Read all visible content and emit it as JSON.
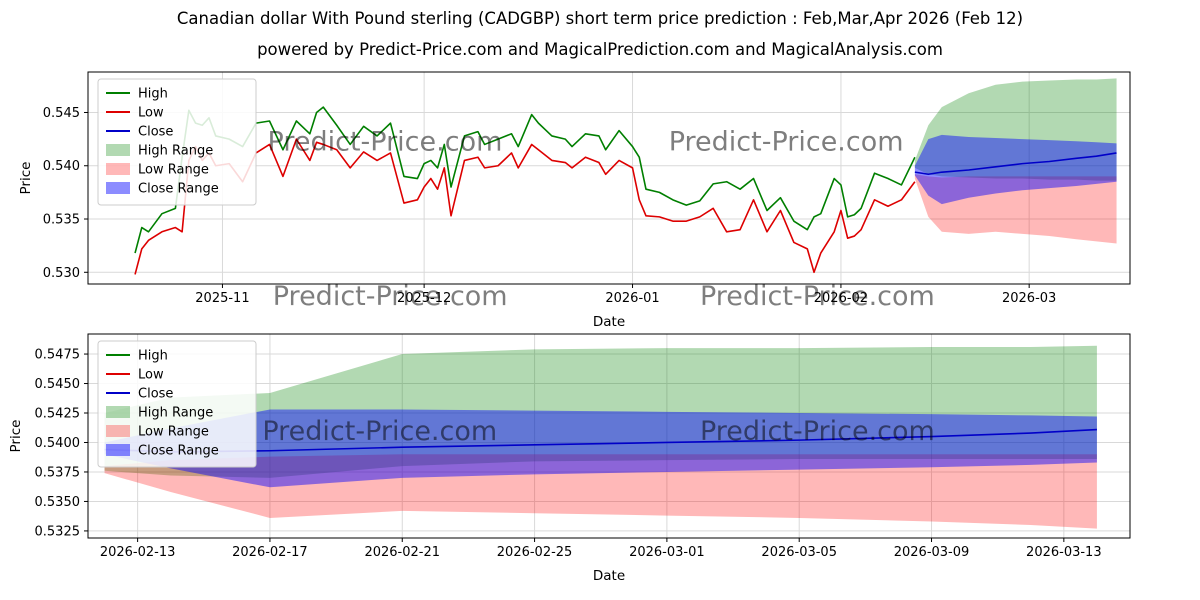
{
  "page": {
    "title": "Canadian dollar With Pound sterling (CADGBP) short term price prediction : Feb,Mar,Apr 2026 (Feb 12)",
    "subtitle": "powered by Predict-Price.com and MagicalPrediction.com and MagicalAnalysis.com"
  },
  "watermark": "Predict-Price.com",
  "colors": {
    "high_line": "#007f00",
    "low_line": "#dd0000",
    "close_line": "#0000c8",
    "high_band": "rgba(0,128,0,0.30)",
    "low_band": "rgba(255,0,0,0.28)",
    "close_band": "rgba(0,0,255,0.45)",
    "grid": "#d9d9d9",
    "watermark_gray": "#9a9a9a"
  },
  "chart_data": [
    {
      "type": "line",
      "title": "",
      "xlabel": "Date",
      "ylabel": "Price",
      "xlim": [
        0,
        155
      ],
      "ylim": [
        0.5289,
        0.5488
      ],
      "xticks": [
        {
          "v": 20,
          "label": "2025-11"
        },
        {
          "v": 50,
          "label": "2025-12"
        },
        {
          "v": 81,
          "label": "2026-01"
        },
        {
          "v": 112,
          "label": "2026-02"
        },
        {
          "v": 140,
          "label": "2026-03"
        }
      ],
      "yticks": [
        {
          "v": 0.53,
          "label": "0.530"
        },
        {
          "v": 0.535,
          "label": "0.535"
        },
        {
          "v": 0.54,
          "label": "0.540"
        },
        {
          "v": 0.545,
          "label": "0.545"
        }
      ],
      "legend": [
        {
          "label": "High",
          "type": "line",
          "color": "#007f00"
        },
        {
          "label": "Low",
          "type": "line",
          "color": "#dd0000"
        },
        {
          "label": "Close",
          "type": "line",
          "color": "#0000c8"
        },
        {
          "label": "High Range",
          "type": "patch",
          "color": "rgba(0,128,0,0.30)"
        },
        {
          "label": "Low Range",
          "type": "patch",
          "color": "rgba(255,0,0,0.28)"
        },
        {
          "label": "Close Range",
          "type": "patch",
          "color": "rgba(0,0,255,0.45)"
        }
      ],
      "bands": [
        {
          "name": "high-range",
          "color": "rgba(0,128,0,0.30)",
          "x": [
            123,
            125,
            127,
            131,
            135,
            139,
            143,
            147,
            150,
            153
          ],
          "upper": [
            0.5405,
            0.5438,
            0.5455,
            0.5468,
            0.5476,
            0.5479,
            0.548,
            0.5481,
            0.5481,
            0.5482
          ],
          "lower": [
            0.5398,
            0.5392,
            0.539,
            0.5389,
            0.5388,
            0.5388,
            0.5387,
            0.5387,
            0.5386,
            0.5386
          ]
        },
        {
          "name": "low-range",
          "color": "rgba(255,0,0,0.28)",
          "x": [
            123,
            125,
            127,
            131,
            135,
            139,
            143,
            147,
            150,
            153
          ],
          "upper": [
            0.5392,
            0.539,
            0.5389,
            0.539,
            0.539,
            0.539,
            0.539,
            0.539,
            0.539,
            0.539
          ],
          "lower": [
            0.5388,
            0.5352,
            0.5338,
            0.5336,
            0.5338,
            0.5336,
            0.5334,
            0.5331,
            0.5329,
            0.5327
          ]
        },
        {
          "name": "close-range",
          "color": "rgba(0,0,255,0.45)",
          "x": [
            123,
            125,
            127,
            131,
            135,
            139,
            143,
            147,
            150,
            153
          ],
          "upper": [
            0.54,
            0.5425,
            0.5429,
            0.5427,
            0.5426,
            0.5425,
            0.5424,
            0.5423,
            0.5422,
            0.5421
          ],
          "lower": [
            0.5391,
            0.5372,
            0.5364,
            0.537,
            0.5374,
            0.5377,
            0.5379,
            0.5381,
            0.5383,
            0.5385
          ]
        }
      ],
      "lines": [
        {
          "name": "high",
          "color": "#007f00",
          "x": [
            7,
            8,
            9,
            11,
            13,
            14,
            15,
            16,
            17,
            18,
            19,
            21,
            23,
            25,
            27,
            29,
            31,
            33,
            34,
            35,
            37,
            39,
            41,
            43,
            45,
            47,
            49,
            50,
            51,
            52,
            53,
            54,
            56,
            58,
            59,
            61,
            63,
            64,
            66,
            67,
            69,
            71,
            72,
            74,
            76,
            77,
            79,
            81,
            82,
            83,
            85,
            87,
            89,
            91,
            93,
            95,
            97,
            99,
            101,
            103,
            105,
            107,
            108,
            109,
            111,
            112,
            113,
            114,
            115,
            117,
            119,
            121,
            123
          ],
          "y": [
            0.5318,
            0.5342,
            0.5338,
            0.5355,
            0.536,
            0.5408,
            0.5452,
            0.544,
            0.5438,
            0.5445,
            0.5428,
            0.5425,
            0.5418,
            0.544,
            0.5442,
            0.5415,
            0.5442,
            0.543,
            0.545,
            0.5455,
            0.5438,
            0.542,
            0.5437,
            0.5428,
            0.544,
            0.539,
            0.5388,
            0.5402,
            0.5405,
            0.5398,
            0.542,
            0.538,
            0.5428,
            0.5432,
            0.542,
            0.5425,
            0.543,
            0.5418,
            0.5448,
            0.544,
            0.5428,
            0.5425,
            0.5418,
            0.543,
            0.5428,
            0.5415,
            0.5433,
            0.5418,
            0.5408,
            0.5378,
            0.5375,
            0.5368,
            0.5363,
            0.5367,
            0.5383,
            0.5385,
            0.5378,
            0.5388,
            0.5358,
            0.537,
            0.5348,
            0.534,
            0.5352,
            0.5355,
            0.5388,
            0.5382,
            0.5352,
            0.5354,
            0.536,
            0.5393,
            0.5388,
            0.5382,
            0.5408
          ]
        },
        {
          "name": "low",
          "color": "#dd0000",
          "x": [
            7,
            8,
            9,
            11,
            13,
            14,
            15,
            16,
            17,
            18,
            19,
            21,
            23,
            25,
            27,
            29,
            31,
            33,
            34,
            35,
            37,
            39,
            41,
            43,
            45,
            47,
            49,
            50,
            51,
            52,
            53,
            54,
            56,
            58,
            59,
            61,
            63,
            64,
            66,
            67,
            69,
            71,
            72,
            74,
            76,
            77,
            79,
            81,
            82,
            83,
            85,
            87,
            89,
            91,
            93,
            95,
            97,
            99,
            101,
            103,
            105,
            107,
            108,
            109,
            111,
            112,
            113,
            114,
            115,
            117,
            119,
            121,
            123
          ],
          "y": [
            0.5298,
            0.5322,
            0.533,
            0.5338,
            0.5342,
            0.5338,
            0.5405,
            0.5418,
            0.5405,
            0.5412,
            0.54,
            0.5402,
            0.5385,
            0.5412,
            0.542,
            0.539,
            0.5425,
            0.5405,
            0.5422,
            0.542,
            0.5415,
            0.5398,
            0.5413,
            0.5405,
            0.5412,
            0.5365,
            0.5368,
            0.538,
            0.5388,
            0.5378,
            0.5398,
            0.5353,
            0.5405,
            0.5408,
            0.5398,
            0.54,
            0.5412,
            0.5398,
            0.542,
            0.5415,
            0.5405,
            0.5403,
            0.5398,
            0.5408,
            0.5403,
            0.5392,
            0.5405,
            0.5398,
            0.5368,
            0.5353,
            0.5352,
            0.5348,
            0.5348,
            0.5352,
            0.536,
            0.5338,
            0.534,
            0.5368,
            0.5338,
            0.5358,
            0.5328,
            0.5322,
            0.53,
            0.5318,
            0.5338,
            0.5358,
            0.5332,
            0.5334,
            0.534,
            0.5368,
            0.5362,
            0.5368,
            0.5385
          ]
        },
        {
          "name": "close",
          "color": "#0000c8",
          "x": [
            123,
            125,
            127,
            131,
            135,
            139,
            143,
            147,
            150,
            153
          ],
          "y": [
            0.5394,
            0.5392,
            0.5394,
            0.5396,
            0.5399,
            0.5402,
            0.5404,
            0.5407,
            0.5409,
            0.5412
          ]
        }
      ],
      "watermarks": [
        {
          "fx": 0.285,
          "fy": 0.37
        },
        {
          "fx": 0.67,
          "fy": 0.37
        },
        {
          "fx": 0.29,
          "fy": 1.1
        },
        {
          "fx": 0.7,
          "fy": 1.1
        }
      ]
    },
    {
      "type": "line",
      "title": "",
      "xlabel": "Date",
      "ylabel": "Price",
      "xlim": [
        -0.5,
        31
      ],
      "ylim": [
        0.5319,
        0.5492
      ],
      "xticks": [
        {
          "v": 1,
          "label": "2026-02-13"
        },
        {
          "v": 5,
          "label": "2026-02-17"
        },
        {
          "v": 9,
          "label": "2026-02-21"
        },
        {
          "v": 13,
          "label": "2026-02-25"
        },
        {
          "v": 17,
          "label": "2026-03-01"
        },
        {
          "v": 21,
          "label": "2026-03-05"
        },
        {
          "v": 25,
          "label": "2026-03-09"
        },
        {
          "v": 29,
          "label": "2026-03-13"
        }
      ],
      "yticks": [
        {
          "v": 0.5325,
          "label": "0.5325"
        },
        {
          "v": 0.535,
          "label": "0.5350"
        },
        {
          "v": 0.5375,
          "label": "0.5375"
        },
        {
          "v": 0.54,
          "label": "0.5400"
        },
        {
          "v": 0.5425,
          "label": "0.5425"
        },
        {
          "v": 0.545,
          "label": "0.5450"
        },
        {
          "v": 0.5475,
          "label": "0.5475"
        }
      ],
      "legend": [
        {
          "label": "High",
          "type": "line",
          "color": "#007f00"
        },
        {
          "label": "Low",
          "type": "line",
          "color": "#dd0000"
        },
        {
          "label": "Close",
          "type": "line",
          "color": "#0000c8"
        },
        {
          "label": "High Range",
          "type": "patch",
          "color": "rgba(0,128,0,0.30)"
        },
        {
          "label": "Low Range",
          "type": "patch",
          "color": "rgba(255,0,0,0.28)"
        },
        {
          "label": "Close Range",
          "type": "patch",
          "color": "rgba(0,0,255,0.45)"
        }
      ],
      "bands": [
        {
          "name": "high-range",
          "color": "rgba(0,128,0,0.30)",
          "x": [
            0,
            2,
            5,
            9,
            13,
            17,
            21,
            25,
            28,
            30
          ],
          "upper": [
            0.5425,
            0.5438,
            0.5442,
            0.5475,
            0.5479,
            0.548,
            0.548,
            0.5481,
            0.5481,
            0.5482
          ],
          "lower": [
            0.5376,
            0.5372,
            0.537,
            0.538,
            0.5384,
            0.5385,
            0.5386,
            0.5386,
            0.5386,
            0.5386
          ]
        },
        {
          "name": "low-range",
          "color": "rgba(255,0,0,0.28)",
          "x": [
            0,
            2,
            5,
            9,
            13,
            17,
            21,
            25,
            28,
            30
          ],
          "upper": [
            0.538,
            0.5385,
            0.5388,
            0.539,
            0.539,
            0.539,
            0.539,
            0.539,
            0.539,
            0.539
          ],
          "lower": [
            0.5374,
            0.5358,
            0.5336,
            0.5342,
            0.534,
            0.5338,
            0.5336,
            0.5333,
            0.533,
            0.5327
          ]
        },
        {
          "name": "close-range",
          "color": "rgba(0,0,255,0.45)",
          "x": [
            0,
            2,
            5,
            9,
            13,
            17,
            21,
            25,
            28,
            30
          ],
          "upper": [
            0.54,
            0.5412,
            0.5428,
            0.5428,
            0.5427,
            0.5426,
            0.5425,
            0.5424,
            0.5423,
            0.5422
          ],
          "lower": [
            0.539,
            0.5378,
            0.5362,
            0.537,
            0.5373,
            0.5375,
            0.5377,
            0.5379,
            0.5381,
            0.5383
          ]
        }
      ],
      "lines": [
        {
          "name": "close",
          "color": "#0000c8",
          "x": [
            0,
            2,
            5,
            9,
            13,
            17,
            21,
            25,
            28,
            30
          ],
          "y": [
            0.5394,
            0.5392,
            0.5393,
            0.5396,
            0.5398,
            0.54,
            0.5402,
            0.5405,
            0.5408,
            0.5411
          ]
        }
      ],
      "watermarks": [
        {
          "fx": 0.28,
          "fy": 0.52
        },
        {
          "fx": 0.7,
          "fy": 0.52
        }
      ]
    }
  ]
}
